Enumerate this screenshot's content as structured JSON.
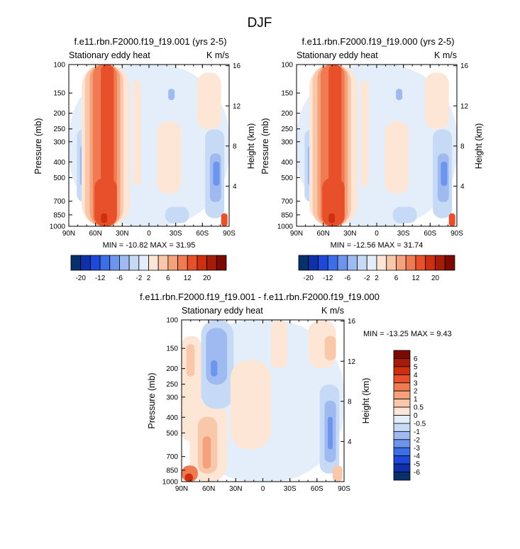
{
  "figure": {
    "title": "DJF"
  },
  "chart_data": [
    {
      "type": "heatmap",
      "title": "f.e11.rbn.F2000.f19_f19.001 (yrs 2-5)",
      "subtitle_left": "Stationary eddy heat",
      "subtitle_right": "K m/s",
      "xlabel": "",
      "ylabel": "Pressure (mb)",
      "ylabel_right": "Height (km)",
      "x_ticks": [
        "90N",
        "60N",
        "30N",
        "0",
        "30S",
        "60S",
        "90S"
      ],
      "y_ticks": [
        "100",
        "150",
        "200",
        "250",
        "300",
        "400",
        "500",
        "700",
        "850",
        "1000"
      ],
      "y_right_ticks": [
        "16",
        "12",
        "8",
        "4"
      ],
      "min_max_text": "MIN = -10.82  MAX =  31.95",
      "ylim": [
        1000,
        100
      ],
      "xlim": [
        90,
        -90
      ],
      "log_pressure_axis": true
    },
    {
      "type": "heatmap",
      "title": "f.e11.rbn.F2000.f19_f19.000 (yrs 2-5)",
      "subtitle_left": "Stationary eddy heat",
      "subtitle_right": "K m/s",
      "xlabel": "",
      "ylabel": "Pressure (mb)",
      "ylabel_right": "Height (km)",
      "x_ticks": [
        "90N",
        "60N",
        "30N",
        "0",
        "30S",
        "60S",
        "90S"
      ],
      "y_ticks": [
        "100",
        "150",
        "200",
        "250",
        "300",
        "400",
        "500",
        "700",
        "850",
        "1000"
      ],
      "y_right_ticks": [
        "16",
        "12",
        "8",
        "4"
      ],
      "min_max_text": "MIN = -12.56  MAX =  31.74",
      "ylim": [
        1000,
        100
      ],
      "xlim": [
        90,
        -90
      ],
      "log_pressure_axis": true
    },
    {
      "type": "heatmap",
      "title": "f.e11.rbn.F2000.f19_f19.001 - f.e11.rbn.F2000.f19_f19.000",
      "subtitle_left": "Stationary eddy heat",
      "subtitle_right": "K m/s",
      "xlabel": "",
      "ylabel": "Pressure (mb)",
      "ylabel_right": "Height (km)",
      "x_ticks": [
        "90N",
        "60N",
        "30N",
        "0",
        "30S",
        "60S",
        "90S"
      ],
      "y_ticks": [
        "100",
        "150",
        "200",
        "250",
        "300",
        "400",
        "500",
        "700",
        "850",
        "1000"
      ],
      "y_right_ticks": [
        "16",
        "12",
        "8",
        "4"
      ],
      "min_max_text": "MIN = -13.25  MAX =   9.43",
      "ylim": [
        1000,
        100
      ],
      "xlim": [
        90,
        -90
      ],
      "log_pressure_axis": true
    }
  ],
  "colorbar_top": {
    "labels": [
      "-20",
      "-12",
      "-6",
      "-2",
      "2",
      "6",
      "12",
      "20"
    ],
    "colors": [
      "#08306b",
      "#1030a8",
      "#1d48d8",
      "#3c6ee8",
      "#6d95ee",
      "#9fbaf1",
      "#c6d9f5",
      "#e4eefb",
      "#fde6d6",
      "#f9c8aa",
      "#f5a27c",
      "#f07a52",
      "#e8502c",
      "#cc3010",
      "#a51d0a",
      "#7a0a02"
    ]
  },
  "colorbar_diff": {
    "labels": [
      "6",
      "5",
      "4",
      "3",
      "2",
      "1",
      "0.5",
      "0",
      "-0.5",
      "-1",
      "-2",
      "-3",
      "-4",
      "-5",
      "-6"
    ],
    "colors": [
      "#7a0a02",
      "#a51d0a",
      "#cc3010",
      "#e8502c",
      "#f07a52",
      "#f5a27c",
      "#f9c8aa",
      "#fde6d6",
      "#e4eefb",
      "#c6d9f5",
      "#9fbaf1",
      "#6d95ee",
      "#3c6ee8",
      "#1d48d8",
      "#1030a8",
      "#08306b"
    ]
  }
}
